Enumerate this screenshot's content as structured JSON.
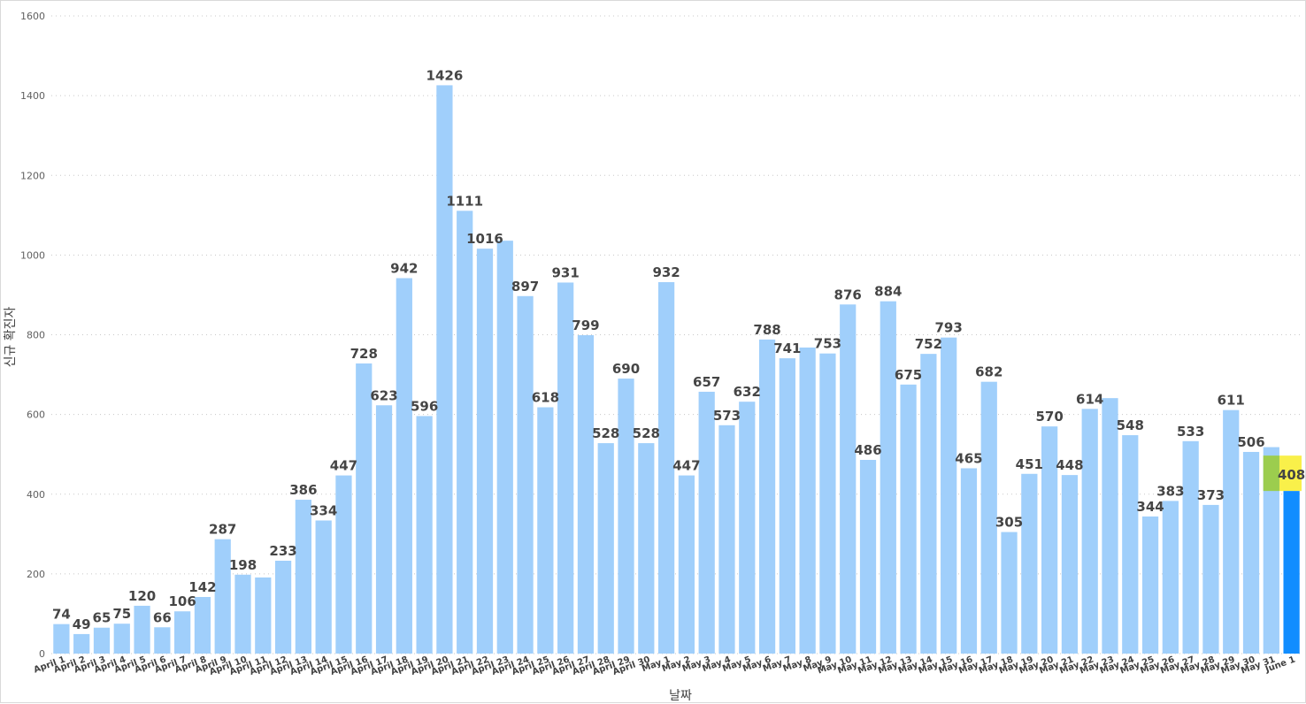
{
  "chart_data": {
    "type": "bar",
    "xlabel": "날짜",
    "ylabel": "신규 확진자",
    "ylim": [
      0,
      1600
    ],
    "yticks": [
      0,
      200,
      400,
      600,
      800,
      1000,
      1200,
      1400,
      1600
    ],
    "grid": true,
    "categories": [
      "April 1",
      "April 2",
      "April 3",
      "April 4",
      "April 5",
      "April 6",
      "April 7",
      "April 8",
      "April 9",
      "April 10",
      "April 11",
      "April 12",
      "April 13",
      "April 14",
      "April 15",
      "April 16",
      "April 17",
      "April 18",
      "April 19",
      "April 20",
      "April 21",
      "April 22",
      "April 23",
      "April 24",
      "April 25",
      "April 26",
      "April 27",
      "April 28",
      "April 29",
      "April 30",
      "May 1",
      "May 2",
      "May 3",
      "May 4",
      "May 5",
      "May 6",
      "May 7",
      "May 8",
      "May 9",
      "May 10",
      "May 11",
      "May 12",
      "May 13",
      "May 14",
      "May 15",
      "May 16",
      "May 17",
      "May 18",
      "May 19",
      "May 20",
      "May 21",
      "May 22",
      "May 23",
      "May 24",
      "May 25",
      "May 26",
      "May 27",
      "May 28",
      "May 29",
      "May 30",
      "May 31",
      "June 1"
    ],
    "values": [
      74,
      49,
      65,
      75,
      120,
      66,
      106,
      142,
      287,
      198,
      191,
      233,
      386,
      334,
      447,
      728,
      623,
      942,
      596,
      1426,
      1111,
      1016,
      1036,
      897,
      618,
      931,
      799,
      528,
      690,
      528,
      932,
      447,
      657,
      573,
      632,
      788,
      741,
      768,
      753,
      876,
      486,
      884,
      675,
      752,
      793,
      465,
      682,
      305,
      451,
      570,
      448,
      614,
      641,
      548,
      344,
      383,
      533,
      373,
      611,
      506,
      518,
      408
    ],
    "data_labels": [
      "74",
      "49",
      "65",
      "75",
      "120",
      "66",
      "106",
      "142",
      "287",
      "198",
      "",
      "233",
      "386",
      "334",
      "447",
      "728",
      "623",
      "942",
      "596",
      "1426",
      "1111",
      "1016",
      "",
      "897",
      "618",
      "931",
      "799",
      "528",
      "690",
      "528",
      "932",
      "447",
      "657",
      "573",
      "632",
      "788",
      "741",
      "",
      "753",
      "876",
      "486",
      "884",
      "675",
      "752",
      "793",
      "465",
      "682",
      "305",
      "451",
      "570",
      "448",
      "614",
      "",
      "548",
      "344",
      "383",
      "533",
      "373",
      "611",
      "506",
      "",
      "408"
    ],
    "highlight_index": 61,
    "colors": {
      "bar": "#a0cffb",
      "highlight_bar": "#118dff",
      "highlight_box": "#f9f04a",
      "highlight_overlap": "#9ccd4e",
      "grid": "#c8c8c8"
    }
  }
}
